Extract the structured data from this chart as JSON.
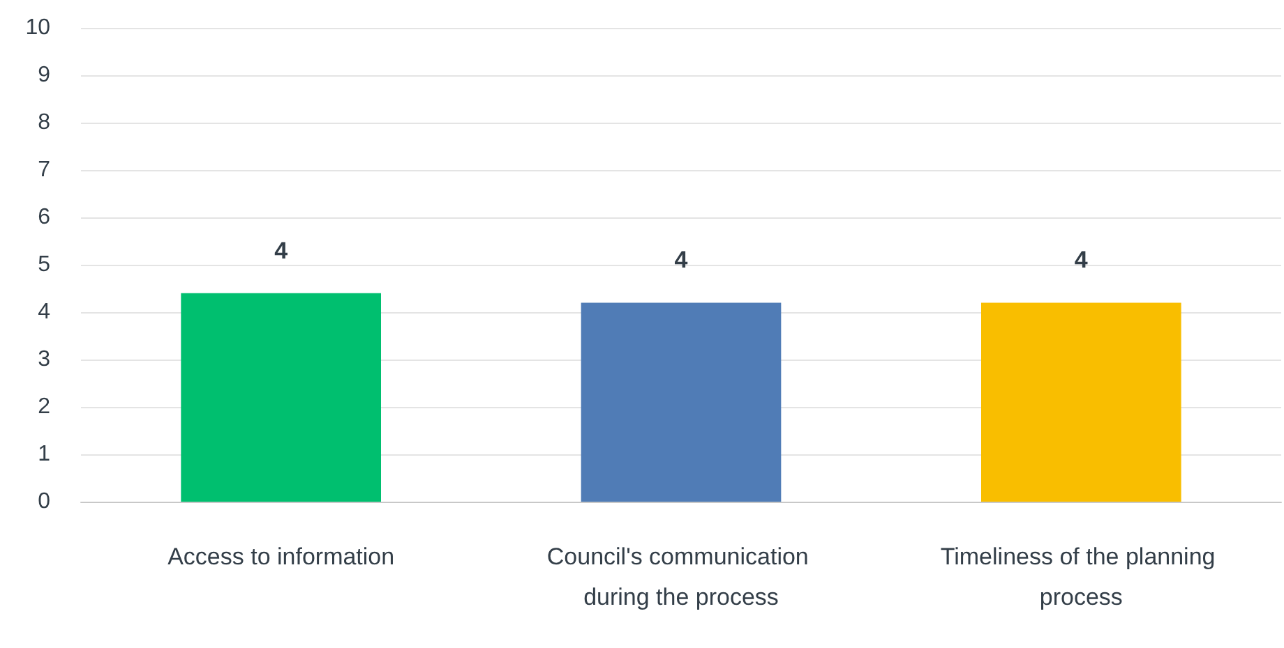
{
  "chart_data": {
    "type": "bar",
    "categories": [
      "Access to information",
      "Council's communication during the process",
      "Timeliness of the planning process"
    ],
    "values": [
      4.4,
      4.2,
      4.2
    ],
    "colors": [
      "#00bf6f",
      "#507cb6",
      "#f9be00"
    ],
    "value_labels": [
      "4",
      "4",
      "4"
    ],
    "ylim": [
      0,
      10
    ],
    "yticks": [
      0,
      1,
      2,
      3,
      4,
      5,
      6,
      7,
      8,
      9,
      10
    ],
    "grid": "y"
  }
}
